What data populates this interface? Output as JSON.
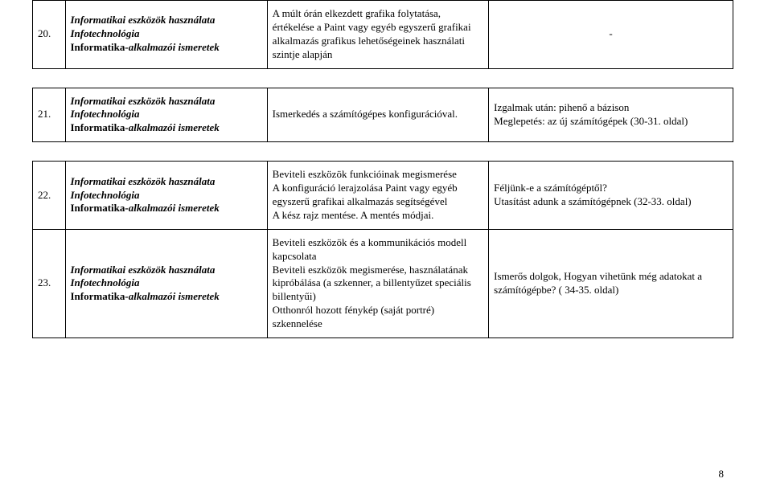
{
  "rows": [
    {
      "num": "20.",
      "subject_line1": "Informatikai eszközök használata",
      "subject_line2": "Infotechnológia",
      "subject_line3_prefix": "Informatika",
      "subject_line3_suffix": "-alkalmazói ismeretek",
      "desc": "A múlt órán elkezdett grafika folytatása, értékelése a Paint vagy egyéb egyszerű grafikai alkalmazás grafikus lehetőségeinek használati szintje alapján",
      "note": "-",
      "note_align": "center"
    },
    {
      "num": "21.",
      "subject_line1": "Informatikai eszközök használata",
      "subject_line2": "Infotechnológia",
      "subject_line3_prefix": "Informatika",
      "subject_line3_suffix": "-alkalmazói ismeretek",
      "desc": "Ismerkedés a számítógépes konfigurációval.",
      "note": "Izgalmak után: pihenő a bázison\nMeglepetés: az új számítógépek (30-31. oldal)",
      "note_align": "left"
    },
    {
      "num": "22.",
      "subject_line1": "Informatikai eszközök használata",
      "subject_line2": "Infotechnológia",
      "subject_line3_prefix": "Informatika",
      "subject_line3_suffix": "-alkalmazói ismeretek",
      "desc": "Beviteli eszközök funkcióinak megismerése\nA konfiguráció lerajzolása Paint vagy egyéb egyszerű grafikai alkalmazás segítségével\nA kész rajz mentése. A mentés módjai.",
      "note": "Féljünk-e a számítógéptől?\nUtasítást adunk a számítógépnek (32-33. oldal)",
      "note_align": "left"
    },
    {
      "num": "23.",
      "subject_line1": "Informatikai eszközök használata",
      "subject_line2": "Infotechnológia",
      "subject_line3_prefix": "Informatika",
      "subject_line3_suffix": "-alkalmazói ismeretek",
      "desc": "Beviteli eszközök és a kommunikációs modell kapcsolata\nBeviteli eszközök megismerése, használatának kipróbálása (a szkenner, a billentyűzet speciális billentyűi)\nOtthonról hozott fénykép (saját portré) szkennelése",
      "note": "Ismerős dolgok, Hogyan vihetünk még adatokat a számítógépbe? ( 34-35. oldal)",
      "note_align": "left"
    }
  ],
  "page_number": "8"
}
